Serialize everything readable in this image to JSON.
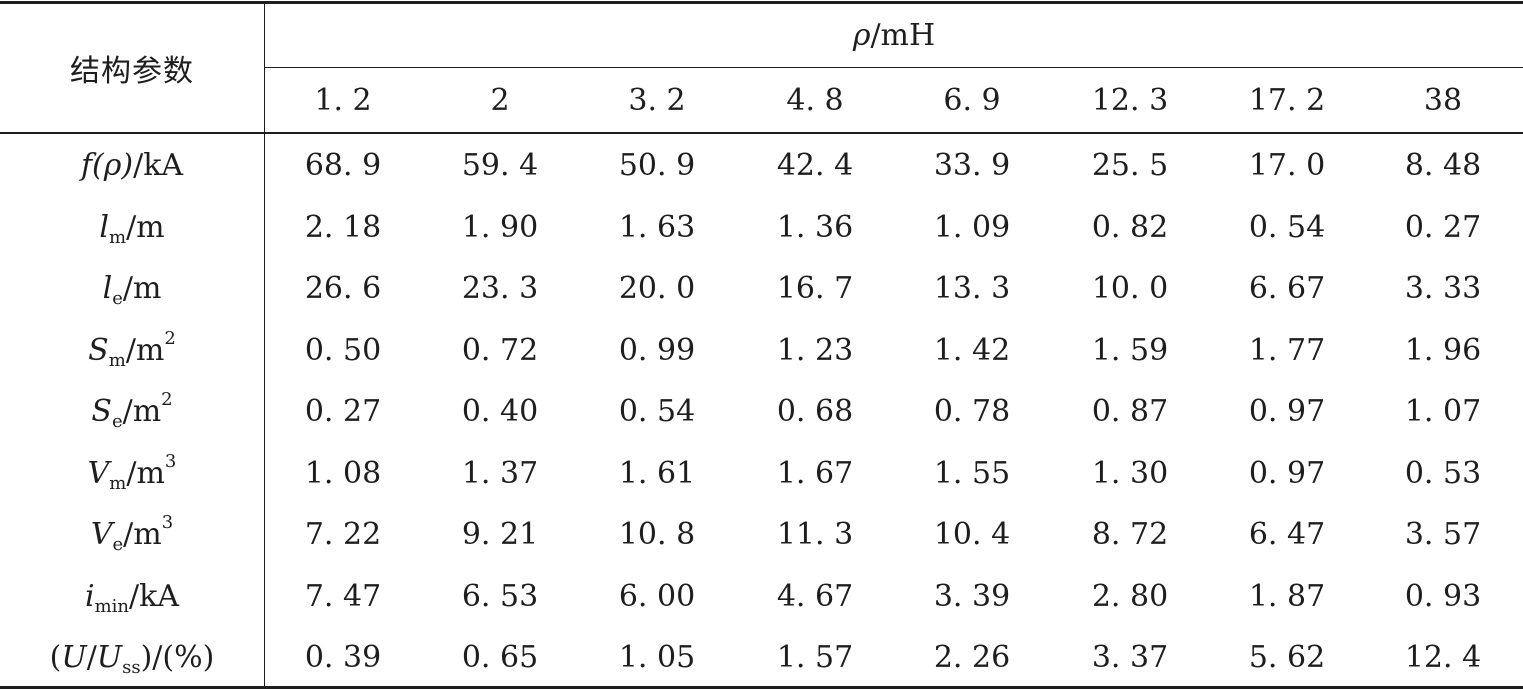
{
  "table": {
    "corner_label": "结构参数",
    "group_header": {
      "symbol": "ρ",
      "unit": "/mH"
    },
    "columns": [
      "1. 2",
      "2",
      "3. 2",
      "4. 8",
      "6. 9",
      "12. 3",
      "17. 2",
      "38"
    ],
    "rows": [
      {
        "label": {
          "main": "f",
          "paren": "(ρ)",
          "sub": "",
          "sup": "",
          "unit": "/kA"
        },
        "values": [
          "68. 9",
          "59. 4",
          "50. 9",
          "42. 4",
          "33. 9",
          "25. 5",
          "17. 0",
          "8. 48"
        ]
      },
      {
        "label": {
          "main": "l",
          "sub": "m",
          "sup": "",
          "unit": "/m"
        },
        "values": [
          "2. 18",
          "1. 90",
          "1. 63",
          "1. 36",
          "1. 09",
          "0. 82",
          "0. 54",
          "0. 27"
        ]
      },
      {
        "label": {
          "main": "l",
          "sub": "e",
          "sup": "",
          "unit": "/m"
        },
        "values": [
          "26. 6",
          "23. 3",
          "20. 0",
          "16. 7",
          "13. 3",
          "10. 0",
          "6. 67",
          "3. 33"
        ]
      },
      {
        "label": {
          "main": "S",
          "sub": "m",
          "sup": "2",
          "unit": "/m"
        },
        "values": [
          "0. 50",
          "0. 72",
          "0. 99",
          "1. 23",
          "1. 42",
          "1. 59",
          "1. 77",
          "1. 96"
        ]
      },
      {
        "label": {
          "main": "S",
          "sub": "e",
          "sup": "2",
          "unit": "/m"
        },
        "values": [
          "0. 27",
          "0. 40",
          "0. 54",
          "0. 68",
          "0. 78",
          "0. 87",
          "0. 97",
          "1. 07"
        ]
      },
      {
        "label": {
          "main": "V",
          "sub": "m",
          "sup": "3",
          "unit": "/m"
        },
        "values": [
          "1. 08",
          "1. 37",
          "1. 61",
          "1. 67",
          "1. 55",
          "1. 30",
          "0. 97",
          "0. 53"
        ]
      },
      {
        "label": {
          "main": "V",
          "sub": "e",
          "sup": "3",
          "unit": "/m"
        },
        "values": [
          "7. 22",
          "9. 21",
          "10. 8",
          "11. 3",
          "10. 4",
          "8. 72",
          "6. 47",
          "3. 57"
        ]
      },
      {
        "label": {
          "main": "i",
          "sub": "min",
          "sup": "",
          "unit": "/kA"
        },
        "values": [
          "7. 47",
          "6. 53",
          "6. 00",
          "4. 67",
          "3. 39",
          "2. 80",
          "1. 87",
          "0. 93"
        ]
      },
      {
        "label": {
          "pre": "(",
          "main": "U",
          "mid": "/",
          "main2": "U",
          "sub": "ss",
          "post": ")/(%)",
          "sup": "",
          "unit": ""
        },
        "values": [
          "0. 39",
          "0. 65",
          "1. 05",
          "1. 57",
          "2. 26",
          "3. 37",
          "5. 62",
          "12. 4"
        ]
      }
    ]
  }
}
